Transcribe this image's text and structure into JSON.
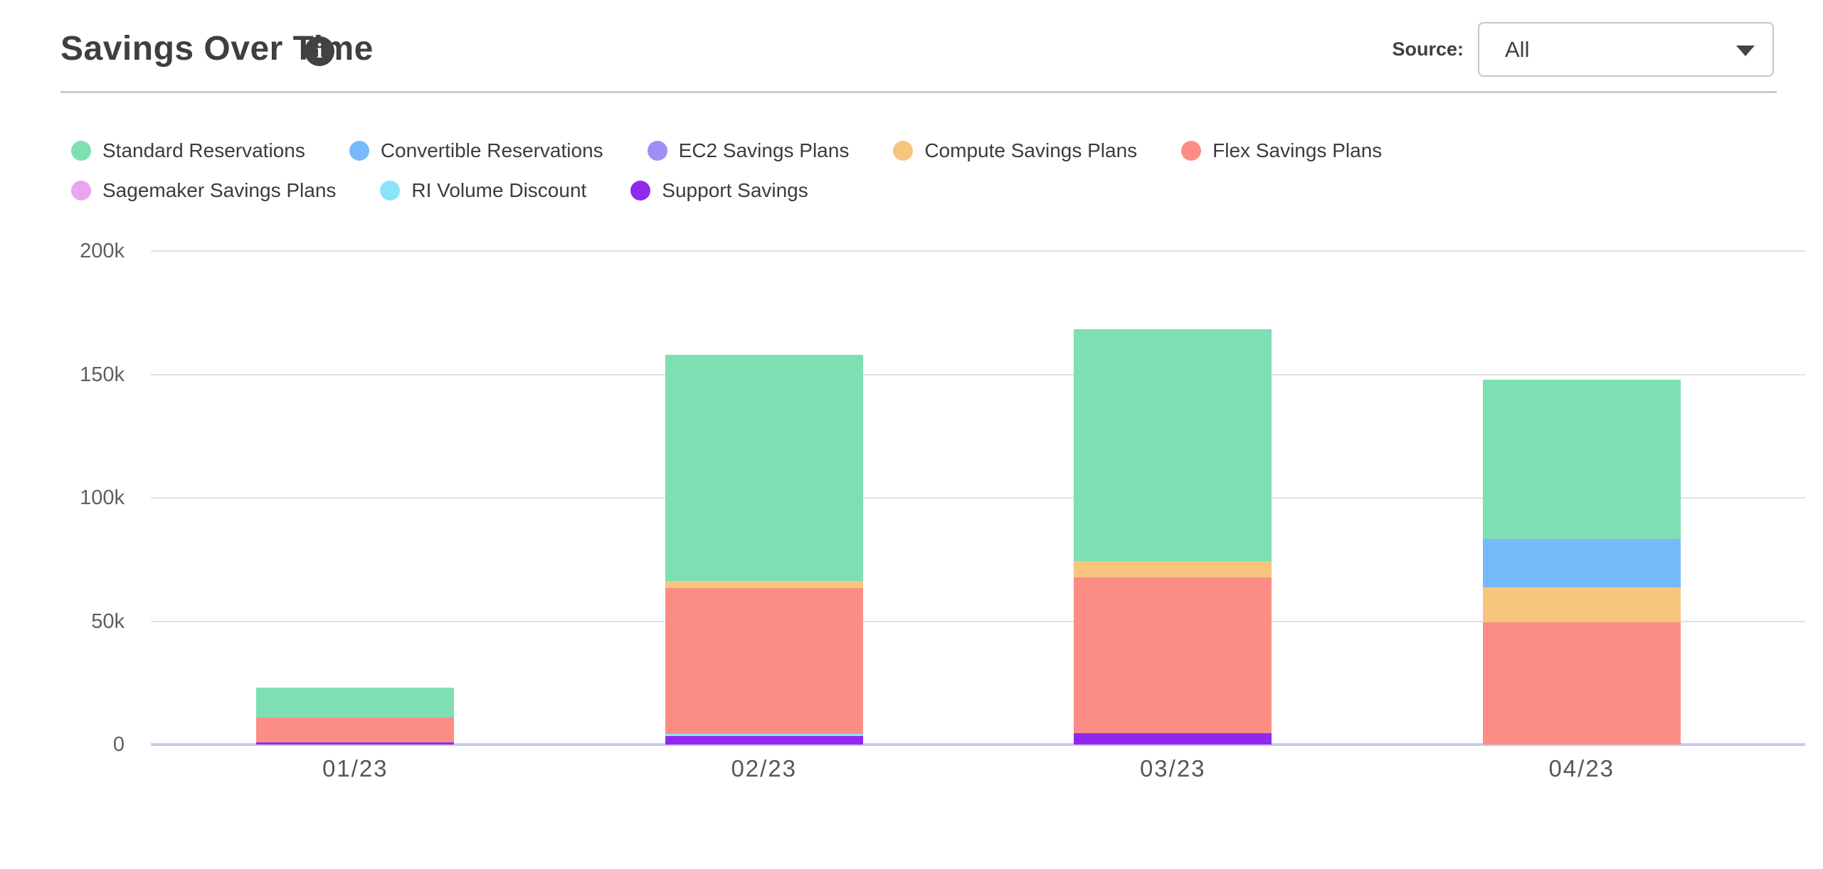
{
  "header": {
    "title": "Savings Over Time",
    "info_glyph": "i",
    "source_label": "Source:",
    "source_value": "All"
  },
  "legend_rows": [
    [
      "Standard Reservations",
      "Convertible Reservations",
      "EC2 Savings Plans",
      "Compute Savings Plans",
      "Flex Savings Plans"
    ],
    [
      "Sagemaker Savings Plans",
      "RI Volume Discount",
      "Support Savings"
    ]
  ],
  "chart_data": {
    "type": "bar",
    "stacked": true,
    "title": "Savings Over Time",
    "categories": [
      "01/23",
      "02/23",
      "03/23",
      "04/23"
    ],
    "series": [
      {
        "name": "Standard Reservations",
        "color": "#7ddfb2",
        "values": [
          12000,
          91500,
          94000,
          64500
        ]
      },
      {
        "name": "Convertible Reservations",
        "color": "#76baf9",
        "values": [
          0,
          0,
          0,
          19500
        ]
      },
      {
        "name": "EC2 Savings Plans",
        "color": "#9e90f2",
        "values": [
          0,
          0,
          0,
          0
        ]
      },
      {
        "name": "Compute Savings Plans",
        "color": "#f8c57e",
        "values": [
          0,
          3000,
          6500,
          14000
        ]
      },
      {
        "name": "Flex Savings Plans",
        "color": "#fc8d85",
        "values": [
          10000,
          59000,
          63000,
          49500
        ]
      },
      {
        "name": "Sagemaker Savings Plans",
        "color": "#eba4ef",
        "values": [
          0,
          0,
          0,
          0
        ]
      },
      {
        "name": "RI Volume Discount",
        "color": "#8ae4f9",
        "values": [
          0,
          1000,
          0,
          0
        ]
      },
      {
        "name": "Support Savings",
        "color": "#9029f0",
        "values": [
          1000,
          3500,
          4500,
          0
        ]
      }
    ],
    "stack_order_bottom_to_top": [
      "Support Savings",
      "RI Volume Discount",
      "Sagemaker Savings Plans",
      "Flex Savings Plans",
      "Compute Savings Plans",
      "EC2 Savings Plans",
      "Convertible Reservations",
      "Standard Reservations"
    ],
    "y_tick_labels": [
      "200k",
      "150k",
      "100k",
      "50k",
      "0"
    ],
    "y_tick_values": [
      200000,
      150000,
      100000,
      50000,
      0
    ],
    "ylim": [
      0,
      200000
    ],
    "grid": true,
    "legend_position": "top",
    "grid_color": "#e2e2e2",
    "axis_color": "#c3cdee"
  }
}
